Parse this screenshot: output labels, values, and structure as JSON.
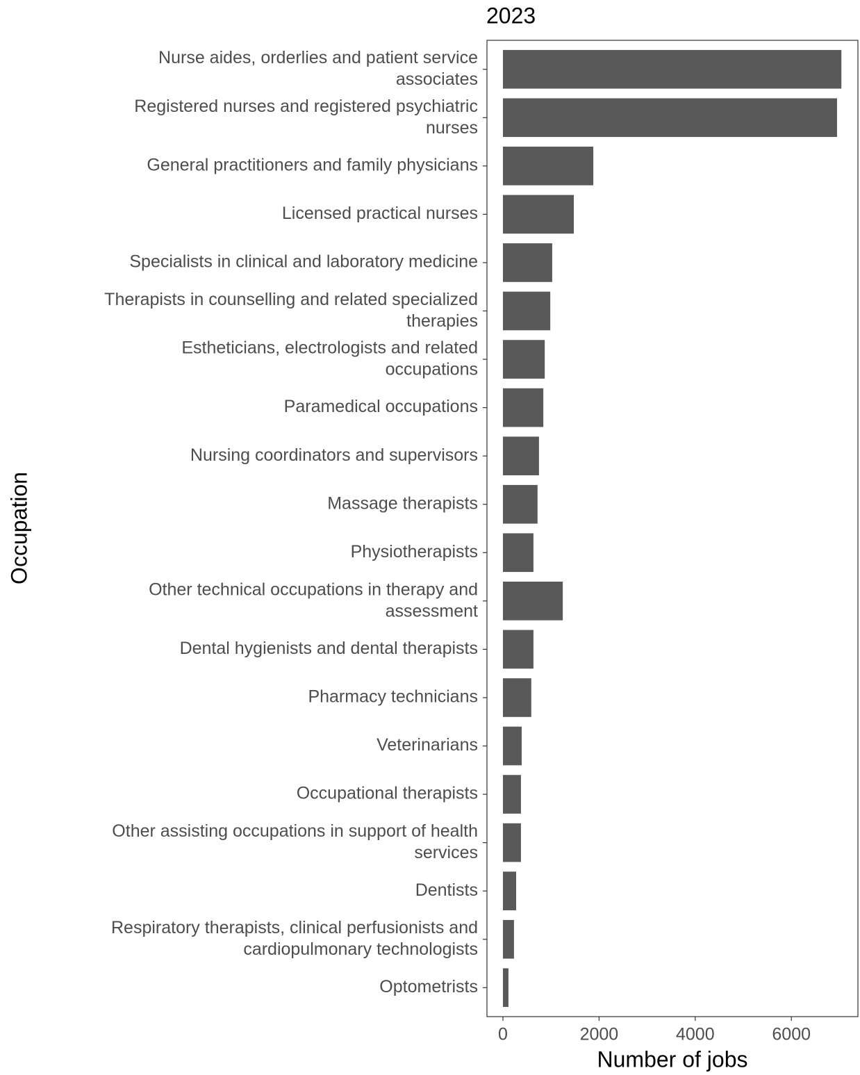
{
  "chart_data": {
    "type": "bar",
    "orientation": "horizontal",
    "title": "2023",
    "x_label": "Number of jobs",
    "y_label": "Occupation",
    "categories": [
      "Nurse aides, orderlies and patient service\nassociates",
      "Registered nurses and registered psychiatric\nnurses",
      "General practitioners and family physicians",
      "Licensed practical nurses",
      "Specialists in clinical and laboratory medicine",
      "Therapists in counselling and related specialized\ntherapies",
      "Estheticians, electrologists and related\noccupations",
      "Paramedical occupations",
      "Nursing coordinators and supervisors",
      "Massage therapists",
      "Physiotherapists",
      "Other technical occupations in therapy and\nassessment",
      "Dental hygienists and dental therapists",
      "Pharmacy technicians",
      "Veterinarians",
      "Occupational therapists",
      "Other assisting occupations in support of health\nservices",
      "Dentists",
      "Respiratory therapists, clinical perfusionists and\ncardiopulmonary technologists",
      "Optometrists"
    ],
    "values": [
      7040,
      6950,
      1880,
      1475,
      1025,
      985,
      870,
      840,
      750,
      720,
      635,
      1245,
      635,
      590,
      390,
      375,
      375,
      275,
      230,
      115
    ],
    "color": "#595959",
    "xlim": [
      -332,
      7384
    ],
    "xticks": [
      0,
      2000,
      4000,
      6000
    ],
    "grid": false
  }
}
